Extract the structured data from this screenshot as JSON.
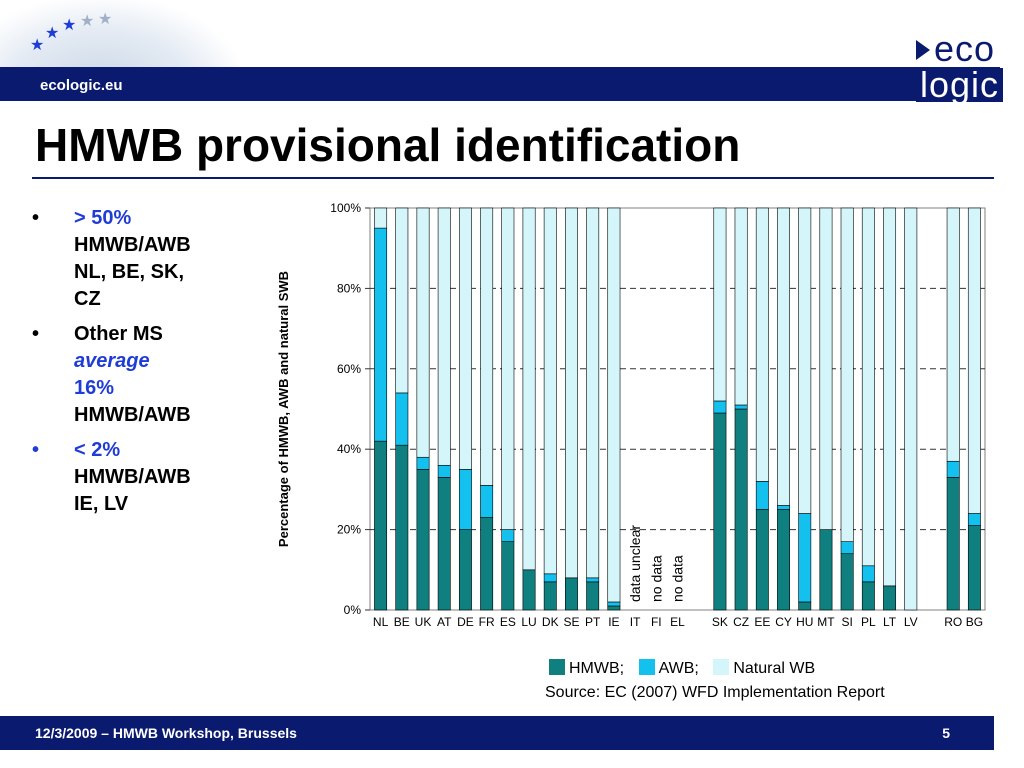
{
  "header": {
    "site": "ecologic.eu",
    "logo_top": "eco",
    "logo_bottom": "logic"
  },
  "title": "HMWB provisional identification",
  "bullets": [
    {
      "lines": [
        "> 50%",
        "HMWB/AWB",
        "NL, BE, SK,",
        "CZ"
      ]
    },
    {
      "lines": [
        "Other MS",
        "average",
        "16%",
        "HMWB/AWB"
      ]
    },
    {
      "lines": [
        "< 2%",
        "HMWB/AWB",
        "IE, LV"
      ]
    }
  ],
  "legend": {
    "hmwb": "HMWB;",
    "awb": "AWB;",
    "natural": "Natural WB"
  },
  "source": "Source: EC (2007) WFD Implementation Report",
  "footer": {
    "date": "12/3/2009 – HMWB Workshop, Brussels",
    "page": "5"
  },
  "colors": {
    "hmwb": "#0f7f7f",
    "awb": "#14c0ee",
    "natural": "#d4f6fa",
    "bar_brand": "#0a1a6e"
  },
  "chart_data": {
    "type": "bar",
    "stacked": true,
    "ylabel": "Percentage of HMWB, AWB and natural SWB",
    "ylim": [
      0,
      100
    ],
    "yticks": [
      "0%",
      "20%",
      "40%",
      "60%",
      "80%",
      "100%"
    ],
    "grid": "horizontal-dashed",
    "categories": [
      "NL",
      "BE",
      "UK",
      "AT",
      "DE",
      "FR",
      "ES",
      "LU",
      "DK",
      "SE",
      "PT",
      "IE",
      "IT",
      "FI",
      "EL",
      "",
      "SK",
      "CZ",
      "EE",
      "CY",
      "HU",
      "MT",
      "SI",
      "PL",
      "LT",
      "LV",
      "",
      "RO",
      "BG"
    ],
    "series": [
      {
        "name": "HMWB",
        "values": [
          42,
          41,
          35,
          33,
          20,
          23,
          17,
          10,
          7,
          8,
          7,
          1,
          null,
          null,
          null,
          null,
          49,
          50,
          25,
          25,
          2,
          20,
          14,
          7,
          6,
          0,
          null,
          33,
          21
        ]
      },
      {
        "name": "AWB",
        "values": [
          53,
          13,
          3,
          3,
          15,
          8,
          3,
          0,
          2,
          0,
          1,
          1,
          null,
          null,
          null,
          null,
          3,
          1,
          7,
          1,
          22,
          0,
          3,
          4,
          0,
          0,
          null,
          4,
          3
        ]
      },
      {
        "name": "Natural WB",
        "values": [
          5,
          46,
          62,
          64,
          65,
          69,
          80,
          90,
          91,
          92,
          92,
          98,
          null,
          null,
          null,
          null,
          48,
          49,
          68,
          74,
          76,
          80,
          83,
          89,
          94,
          100,
          null,
          63,
          76
        ]
      }
    ],
    "annotations": [
      "data unclear",
      "no data",
      "no data"
    ]
  }
}
